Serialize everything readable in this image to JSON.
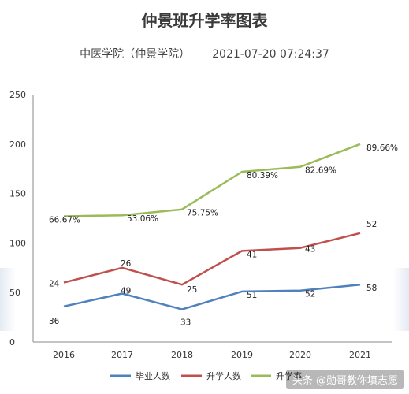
{
  "header": {
    "title": "仲景班升学率图表",
    "school": "中医学院（仲景学院）",
    "datetime": "2021-07-20 07:24:37"
  },
  "watermark": "头条 @勋哥教你填志愿",
  "chart_data": {
    "type": "line",
    "categories": [
      "2016",
      "2017",
      "2018",
      "2019",
      "2020",
      "2021"
    ],
    "ylim": [
      0,
      250
    ],
    "yticks": [
      0,
      50,
      100,
      150,
      200,
      250
    ],
    "grid": false,
    "legend_position": "bottom",
    "series": [
      {
        "name": "毕业人数",
        "color": "#4f81bd",
        "values": [
          36,
          49,
          33,
          51,
          52,
          58
        ],
        "labels": [
          "36",
          "49",
          "33",
          "51",
          "52",
          "58"
        ]
      },
      {
        "name": "升学人数",
        "color": "#c0504d",
        "values": [
          24,
          26,
          25,
          41,
          43,
          52
        ],
        "plotted": [
          60,
          75,
          58,
          92,
          95,
          110
        ],
        "labels": [
          "24",
          "26",
          "25",
          "41",
          "43",
          "52"
        ]
      },
      {
        "name": "升学率",
        "color": "#9bbb59",
        "values": [
          66.67,
          53.06,
          75.75,
          80.39,
          82.69,
          89.66
        ],
        "plotted": [
          127,
          128,
          134,
          172,
          177,
          200
        ],
        "labels": [
          "66.67%",
          "53.06%",
          "75.75%",
          "80.39%",
          "82.69%",
          "89.66%"
        ]
      }
    ]
  }
}
